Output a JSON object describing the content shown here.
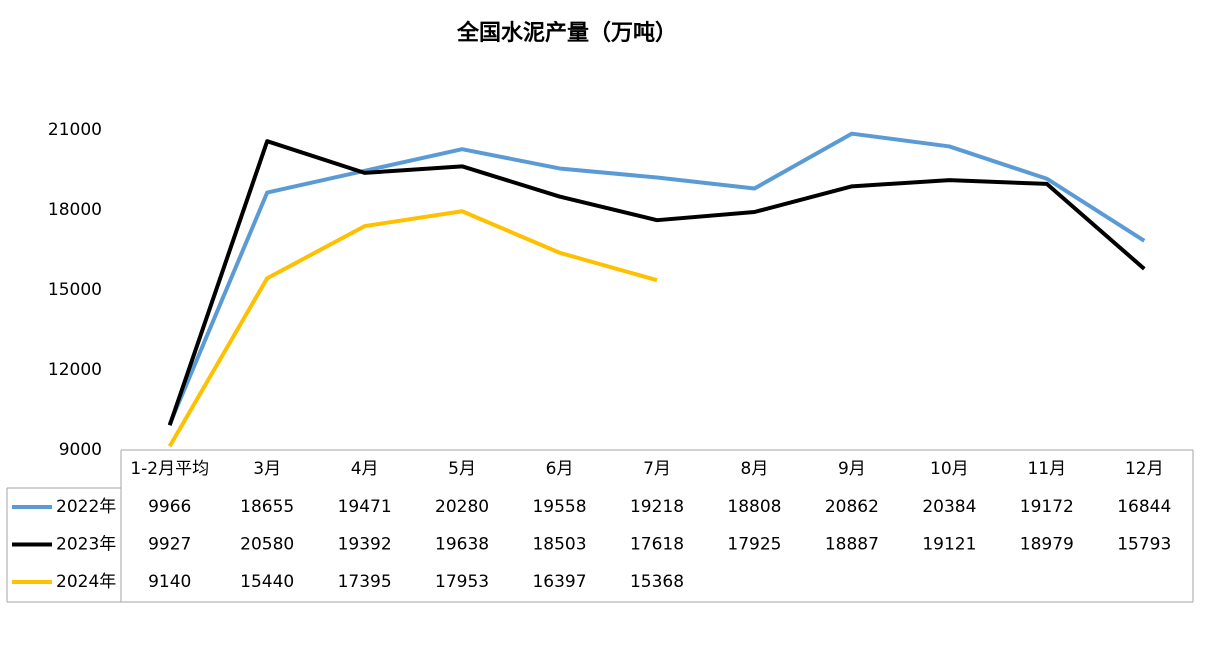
{
  "chart_data": {
    "type": "line",
    "title": "全国水泥产量（万吨）",
    "categories": [
      "1-2月平均",
      "3月",
      "4月",
      "5月",
      "6月",
      "7月",
      "8月",
      "9月",
      "10月",
      "11月",
      "12月"
    ],
    "series": [
      {
        "name": "2022年",
        "color": "#5b9bd5",
        "values": [
          9966,
          18655,
          19471,
          20280,
          19558,
          19218,
          18808,
          20862,
          20384,
          19172,
          16844
        ]
      },
      {
        "name": "2023年",
        "color": "#000000",
        "values": [
          9927,
          20580,
          19392,
          19638,
          18503,
          17618,
          17925,
          18887,
          19121,
          18979,
          15793
        ]
      },
      {
        "name": "2024年",
        "color": "#ffc000",
        "values": [
          9140,
          15440,
          17395,
          17953,
          16397,
          15368,
          null,
          null,
          null,
          null,
          null
        ]
      }
    ],
    "ylim": [
      9000,
      21000
    ],
    "yticks": [
      9000,
      12000,
      15000,
      18000,
      21000
    ],
    "grid": false
  }
}
